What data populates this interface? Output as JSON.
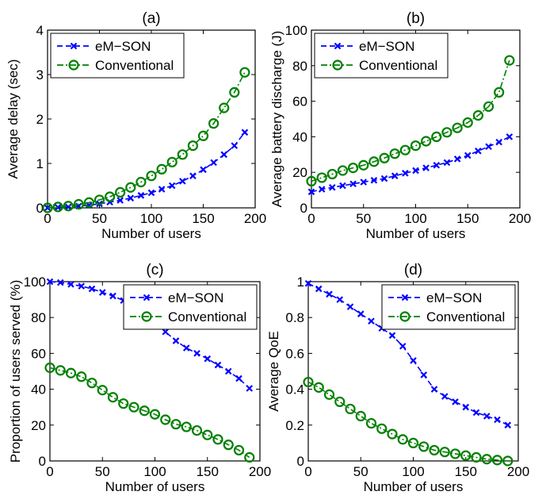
{
  "chart_data": [
    {
      "type": "line",
      "title": "(a)",
      "xlabel": "Number of users",
      "ylabel": "Average delay (sec)",
      "xlim": [
        0,
        200
      ],
      "ylim": [
        0,
        4
      ],
      "xticks": [
        "0",
        "50",
        "100",
        "150",
        "200"
      ],
      "yticks": [
        "0",
        "1",
        "2",
        "3",
        "4"
      ],
      "legend_position": "top-left",
      "x": [
        0,
        10,
        20,
        30,
        40,
        50,
        60,
        70,
        80,
        90,
        100,
        110,
        120,
        130,
        140,
        150,
        160,
        170,
        180,
        190
      ],
      "series": [
        {
          "name": "eM−SON",
          "color": "#0000ff",
          "marker": "x",
          "line_style": "dashed",
          "values": [
            0.0,
            0.01,
            0.02,
            0.04,
            0.06,
            0.09,
            0.13,
            0.17,
            0.22,
            0.28,
            0.34,
            0.42,
            0.5,
            0.6,
            0.72,
            0.86,
            1.02,
            1.2,
            1.4,
            1.7
          ]
        },
        {
          "name": "Conventional",
          "color": "#008000",
          "marker": "o",
          "line_style": "dash-dot",
          "values": [
            0.0,
            0.02,
            0.04,
            0.08,
            0.12,
            0.18,
            0.25,
            0.35,
            0.46,
            0.58,
            0.72,
            0.87,
            1.03,
            1.2,
            1.4,
            1.62,
            1.9,
            2.25,
            2.6,
            3.05
          ]
        }
      ]
    },
    {
      "type": "line",
      "title": "(b)",
      "xlabel": "Number of users",
      "ylabel": "Average battery discharge (J)",
      "xlim": [
        0,
        200
      ],
      "ylim": [
        0,
        100
      ],
      "xticks": [
        "0",
        "50",
        "100",
        "150",
        "200"
      ],
      "yticks": [
        "0",
        "20",
        "40",
        "60",
        "80",
        "100"
      ],
      "legend_position": "top-left",
      "x": [
        0,
        10,
        20,
        30,
        40,
        50,
        60,
        70,
        80,
        90,
        100,
        110,
        120,
        130,
        140,
        150,
        160,
        170,
        180,
        190
      ],
      "series": [
        {
          "name": "eM−SON",
          "color": "#0000ff",
          "marker": "x",
          "line_style": "dashed",
          "values": [
            9.0,
            10.5,
            11.5,
            12.5,
            13.5,
            14.5,
            15.5,
            16.5,
            18.0,
            19.5,
            21.0,
            22.5,
            24.0,
            25.5,
            27.5,
            29.5,
            32.0,
            34.5,
            37.0,
            40.0
          ]
        },
        {
          "name": "Conventional",
          "color": "#008000",
          "marker": "o",
          "line_style": "dash-dot",
          "values": [
            15.0,
            17.0,
            19.0,
            21.0,
            22.5,
            24.0,
            26.0,
            28.0,
            30.5,
            32.5,
            35.0,
            37.5,
            40.0,
            42.5,
            45.0,
            48.0,
            52.0,
            57.0,
            65.0,
            83.0
          ]
        }
      ]
    },
    {
      "type": "line",
      "title": "(c)",
      "xlabel": "Number of users",
      "ylabel": "Proportion of users served (%)",
      "xlim": [
        0,
        200
      ],
      "ylim": [
        0,
        100
      ],
      "xticks": [
        "0",
        "50",
        "100",
        "150",
        "200"
      ],
      "yticks": [
        "0",
        "20",
        "40",
        "60",
        "80",
        "100"
      ],
      "legend_position": "top-right",
      "x": [
        0,
        10,
        20,
        30,
        40,
        50,
        60,
        70,
        80,
        90,
        100,
        110,
        120,
        130,
        140,
        150,
        160,
        170,
        180,
        190
      ],
      "series": [
        {
          "name": "eM−SON",
          "color": "#0000ff",
          "marker": "x",
          "line_style": "dashed",
          "values": [
            100.0,
            99.5,
            98.5,
            97.5,
            96.0,
            94.0,
            92.0,
            89.5,
            87.0,
            83.0,
            78.0,
            72.0,
            67.0,
            63.0,
            60.0,
            57.0,
            53.5,
            50.0,
            46.0,
            40.5
          ]
        },
        {
          "name": "Conventional",
          "color": "#008000",
          "marker": "o",
          "line_style": "dash-dot",
          "values": [
            52.0,
            50.5,
            49.0,
            47.0,
            43.5,
            39.5,
            35.5,
            32.0,
            30.0,
            28.0,
            26.0,
            23.0,
            20.5,
            19.0,
            17.0,
            14.5,
            12.0,
            9.0,
            6.0,
            2.0
          ]
        }
      ]
    },
    {
      "type": "line",
      "title": "(d)",
      "xlabel": "Number of users",
      "ylabel": "Average QoE",
      "xlim": [
        0,
        200
      ],
      "ylim": [
        0,
        1
      ],
      "xticks": [
        "0",
        "50",
        "100",
        "150",
        "200"
      ],
      "yticks": [
        "0",
        "0.2",
        "0.4",
        "0.6",
        "0.8",
        "1"
      ],
      "legend_position": "top-right",
      "x": [
        0,
        10,
        20,
        30,
        40,
        50,
        60,
        70,
        80,
        90,
        100,
        110,
        120,
        130,
        140,
        150,
        160,
        170,
        180,
        190
      ],
      "series": [
        {
          "name": "eM−SON",
          "color": "#0000ff",
          "marker": "x",
          "line_style": "dashed",
          "values": [
            0.99,
            0.96,
            0.93,
            0.9,
            0.86,
            0.82,
            0.78,
            0.74,
            0.7,
            0.64,
            0.56,
            0.48,
            0.4,
            0.36,
            0.33,
            0.3,
            0.27,
            0.25,
            0.23,
            0.2
          ]
        },
        {
          "name": "Conventional",
          "color": "#008000",
          "marker": "o",
          "line_style": "dash-dot",
          "values": [
            0.44,
            0.41,
            0.37,
            0.33,
            0.29,
            0.25,
            0.21,
            0.18,
            0.15,
            0.12,
            0.1,
            0.08,
            0.06,
            0.05,
            0.04,
            0.03,
            0.02,
            0.01,
            0.005,
            0.0
          ]
        }
      ]
    }
  ]
}
